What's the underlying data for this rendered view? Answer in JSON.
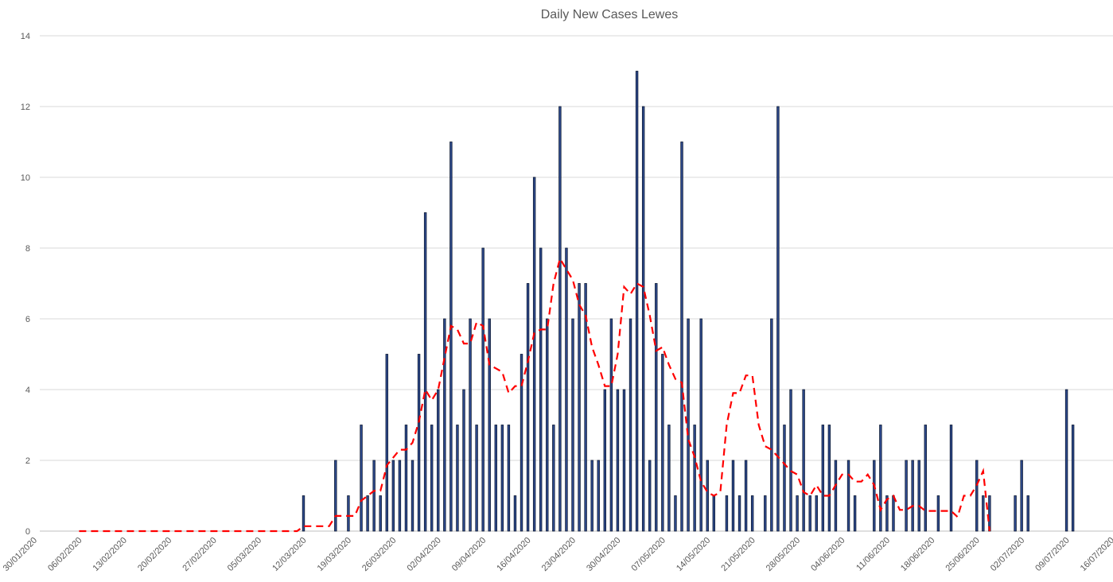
{
  "chart_data": {
    "type": "bar",
    "title": "Daily New Cases Lewes",
    "xlabel": "",
    "ylabel": "",
    "ylim": [
      0,
      14
    ],
    "yticks": [
      0,
      2,
      4,
      6,
      8,
      10,
      12,
      14
    ],
    "x_start": "30/01/2020",
    "x_end": "16/07/2020",
    "x_tick_labels": [
      "30/01/2020",
      "06/02/2020",
      "13/02/2020",
      "20/02/2020",
      "27/02/2020",
      "05/03/2020",
      "12/03/2020",
      "19/03/2020",
      "26/03/2020",
      "02/04/2020",
      "09/04/2020",
      "16/04/2020",
      "23/04/2020",
      "30/04/2020",
      "07/05/2020",
      "14/05/2020",
      "21/05/2020",
      "28/05/2020",
      "04/06/2020",
      "11/06/2020",
      "18/06/2020",
      "25/06/2020",
      "02/07/2020",
      "09/07/2020",
      "16/07/2020"
    ],
    "grid": true,
    "legend": "none",
    "colors": {
      "bars": "#2f4b8f",
      "bar_outline": "#0d1a33",
      "average_line": "#ff0000"
    },
    "series": [
      {
        "type": "bar",
        "points": [
          [
            "12/03/2020",
            1
          ],
          [
            "17/03/2020",
            2
          ],
          [
            "19/03/2020",
            1
          ],
          [
            "21/03/2020",
            3
          ],
          [
            "22/03/2020",
            1
          ],
          [
            "23/03/2020",
            2
          ],
          [
            "24/03/2020",
            1
          ],
          [
            "25/03/2020",
            5
          ],
          [
            "26/03/2020",
            2
          ],
          [
            "27/03/2020",
            2
          ],
          [
            "28/03/2020",
            3
          ],
          [
            "29/03/2020",
            2
          ],
          [
            "30/03/2020",
            5
          ],
          [
            "31/03/2020",
            9
          ],
          [
            "01/04/2020",
            3
          ],
          [
            "02/04/2020",
            4
          ],
          [
            "03/04/2020",
            6
          ],
          [
            "04/04/2020",
            11
          ],
          [
            "05/04/2020",
            3
          ],
          [
            "06/04/2020",
            4
          ],
          [
            "07/04/2020",
            6
          ],
          [
            "08/04/2020",
            3
          ],
          [
            "09/04/2020",
            8
          ],
          [
            "10/04/2020",
            6
          ],
          [
            "11/04/2020",
            3
          ],
          [
            "12/04/2020",
            3
          ],
          [
            "13/04/2020",
            3
          ],
          [
            "14/04/2020",
            1
          ],
          [
            "15/04/2020",
            5
          ],
          [
            "16/04/2020",
            7
          ],
          [
            "17/04/2020",
            10
          ],
          [
            "18/04/2020",
            8
          ],
          [
            "19/04/2020",
            6
          ],
          [
            "20/04/2020",
            3
          ],
          [
            "21/04/2020",
            12
          ],
          [
            "22/04/2020",
            8
          ],
          [
            "23/04/2020",
            6
          ],
          [
            "24/04/2020",
            7
          ],
          [
            "25/04/2020",
            7
          ],
          [
            "26/04/2020",
            2
          ],
          [
            "27/04/2020",
            2
          ],
          [
            "28/04/2020",
            4
          ],
          [
            "29/04/2020",
            6
          ],
          [
            "30/04/2020",
            4
          ],
          [
            "01/05/2020",
            4
          ],
          [
            "02/05/2020",
            6
          ],
          [
            "03/05/2020",
            13
          ],
          [
            "04/05/2020",
            12
          ],
          [
            "05/05/2020",
            2
          ],
          [
            "06/05/2020",
            7
          ],
          [
            "07/05/2020",
            5
          ],
          [
            "08/05/2020",
            3
          ],
          [
            "09/05/2020",
            1
          ],
          [
            "10/05/2020",
            11
          ],
          [
            "11/05/2020",
            6
          ],
          [
            "12/05/2020",
            3
          ],
          [
            "13/05/2020",
            6
          ],
          [
            "14/05/2020",
            2
          ],
          [
            "15/05/2020",
            1
          ],
          [
            "17/05/2020",
            1
          ],
          [
            "18/05/2020",
            2
          ],
          [
            "19/05/2020",
            1
          ],
          [
            "20/05/2020",
            2
          ],
          [
            "21/05/2020",
            1
          ],
          [
            "23/05/2020",
            1
          ],
          [
            "24/05/2020",
            6
          ],
          [
            "25/05/2020",
            12
          ],
          [
            "26/05/2020",
            3
          ],
          [
            "27/05/2020",
            4
          ],
          [
            "28/05/2020",
            1
          ],
          [
            "29/05/2020",
            4
          ],
          [
            "30/05/2020",
            1
          ],
          [
            "31/05/2020",
            1
          ],
          [
            "01/06/2020",
            3
          ],
          [
            "02/06/2020",
            3
          ],
          [
            "03/06/2020",
            2
          ],
          [
            "05/06/2020",
            2
          ],
          [
            "06/06/2020",
            1
          ],
          [
            "09/06/2020",
            2
          ],
          [
            "10/06/2020",
            3
          ],
          [
            "11/06/2020",
            1
          ],
          [
            "12/06/2020",
            1
          ],
          [
            "14/06/2020",
            2
          ],
          [
            "15/06/2020",
            2
          ],
          [
            "16/06/2020",
            2
          ],
          [
            "17/06/2020",
            3
          ],
          [
            "19/06/2020",
            1
          ],
          [
            "21/06/2020",
            3
          ],
          [
            "25/06/2020",
            2
          ],
          [
            "26/06/2020",
            1
          ],
          [
            "27/06/2020",
            1
          ],
          [
            "01/07/2020",
            1
          ],
          [
            "02/07/2020",
            2
          ],
          [
            "03/07/2020",
            1
          ],
          [
            "09/07/2020",
            4
          ],
          [
            "10/07/2020",
            3
          ]
        ]
      },
      {
        "type": "line",
        "style": "dashed",
        "points": [
          [
            "06/02/2020",
            0
          ],
          [
            "11/03/2020",
            0
          ],
          [
            "12/03/2020",
            0.14
          ],
          [
            "16/03/2020",
            0.14
          ],
          [
            "17/03/2020",
            0.43
          ],
          [
            "20/03/2020",
            0.43
          ],
          [
            "21/03/2020",
            0.86
          ],
          [
            "23/03/2020",
            1.14
          ],
          [
            "24/03/2020",
            1.14
          ],
          [
            "25/03/2020",
            1.86
          ],
          [
            "27/03/2020",
            2.3
          ],
          [
            "28/03/2020",
            2.3
          ],
          [
            "29/03/2020",
            2.5
          ],
          [
            "30/03/2020",
            3.1
          ],
          [
            "31/03/2020",
            4.0
          ],
          [
            "01/04/2020",
            3.7
          ],
          [
            "02/04/2020",
            4.0
          ],
          [
            "03/04/2020",
            4.9
          ],
          [
            "04/04/2020",
            5.8
          ],
          [
            "05/04/2020",
            5.7
          ],
          [
            "06/04/2020",
            5.3
          ],
          [
            "07/04/2020",
            5.3
          ],
          [
            "08/04/2020",
            5.9
          ],
          [
            "09/04/2020",
            5.8
          ],
          [
            "10/04/2020",
            4.7
          ],
          [
            "11/04/2020",
            4.6
          ],
          [
            "12/04/2020",
            4.5
          ],
          [
            "13/04/2020",
            3.9
          ],
          [
            "14/04/2020",
            4.1
          ],
          [
            "15/04/2020",
            4.1
          ],
          [
            "16/04/2020",
            4.8
          ],
          [
            "17/04/2020",
            5.6
          ],
          [
            "18/04/2020",
            5.7
          ],
          [
            "19/04/2020",
            5.7
          ],
          [
            "20/04/2020",
            7.0
          ],
          [
            "21/04/2020",
            7.7
          ],
          [
            "22/04/2020",
            7.4
          ],
          [
            "23/04/2020",
            7.1
          ],
          [
            "24/04/2020",
            6.4
          ],
          [
            "25/04/2020",
            6.1
          ],
          [
            "26/04/2020",
            5.2
          ],
          [
            "27/04/2020",
            4.7
          ],
          [
            "28/04/2020",
            4.1
          ],
          [
            "29/04/2020",
            4.1
          ],
          [
            "30/04/2020",
            5.0
          ],
          [
            "01/05/2020",
            6.9
          ],
          [
            "02/05/2020",
            6.7
          ],
          [
            "03/05/2020",
            7.0
          ],
          [
            "04/05/2020",
            6.9
          ],
          [
            "05/05/2020",
            6.1
          ],
          [
            "06/05/2020",
            5.1
          ],
          [
            "07/05/2020",
            5.2
          ],
          [
            "08/05/2020",
            4.7
          ],
          [
            "09/05/2020",
            4.3
          ],
          [
            "10/05/2020",
            4.2
          ],
          [
            "11/05/2020",
            2.6
          ],
          [
            "12/05/2020",
            2.1
          ],
          [
            "13/05/2020",
            1.4
          ],
          [
            "14/05/2020",
            1.1
          ],
          [
            "15/05/2020",
            1.0
          ],
          [
            "16/05/2020",
            1.1
          ],
          [
            "17/05/2020",
            3.0
          ],
          [
            "18/05/2020",
            3.9
          ],
          [
            "19/05/2020",
            3.9
          ],
          [
            "20/05/2020",
            4.4
          ],
          [
            "21/05/2020",
            4.4
          ],
          [
            "22/05/2020",
            3.0
          ],
          [
            "23/05/2020",
            2.4
          ],
          [
            "24/05/2020",
            2.3
          ],
          [
            "25/05/2020",
            2.1
          ],
          [
            "26/05/2020",
            1.9
          ],
          [
            "27/05/2020",
            1.7
          ],
          [
            "28/05/2020",
            1.6
          ],
          [
            "29/05/2020",
            1.1
          ],
          [
            "30/05/2020",
            1.0
          ],
          [
            "31/05/2020",
            1.3
          ],
          [
            "01/06/2020",
            1.0
          ],
          [
            "02/06/2020",
            1.0
          ],
          [
            "03/06/2020",
            1.3
          ],
          [
            "04/06/2020",
            1.6
          ],
          [
            "05/06/2020",
            1.6
          ],
          [
            "06/06/2020",
            1.4
          ],
          [
            "07/06/2020",
            1.4
          ],
          [
            "08/06/2020",
            1.6
          ],
          [
            "09/06/2020",
            1.3
          ],
          [
            "10/06/2020",
            0.6
          ],
          [
            "11/06/2020",
            0.9
          ],
          [
            "12/06/2020",
            1.0
          ],
          [
            "13/06/2020",
            0.6
          ],
          [
            "14/06/2020",
            0.6
          ],
          [
            "15/06/2020",
            0.71
          ],
          [
            "16/06/2020",
            0.71
          ],
          [
            "17/06/2020",
            0.57
          ],
          [
            "18/06/2020",
            0.57
          ],
          [
            "19/06/2020",
            0.57
          ],
          [
            "20/06/2020",
            0.57
          ],
          [
            "21/06/2020",
            0.57
          ],
          [
            "22/06/2020",
            0.4
          ],
          [
            "23/06/2020",
            1.0
          ],
          [
            "24/06/2020",
            1.0
          ],
          [
            "25/06/2020",
            1.3
          ],
          [
            "26/06/2020",
            1.7
          ],
          [
            "27/06/2020",
            0.0
          ]
        ]
      }
    ]
  }
}
